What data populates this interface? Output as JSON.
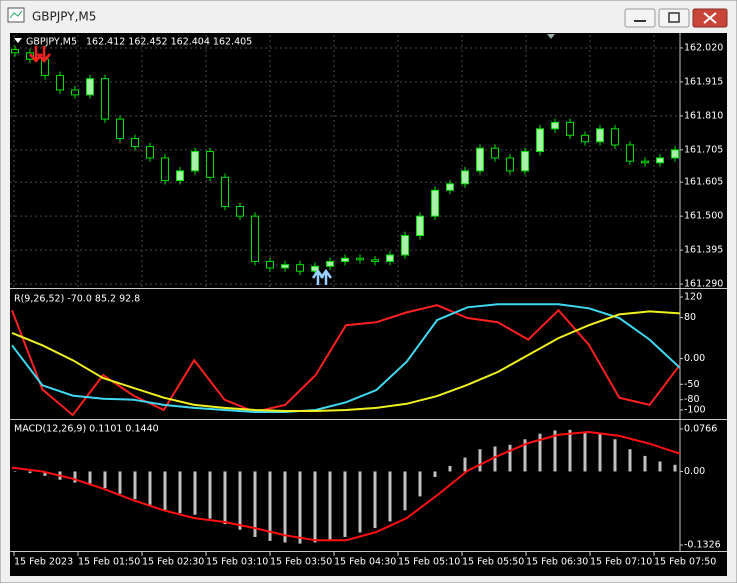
{
  "window": {
    "title": "GBPJPY,M5"
  },
  "chart_data": [
    {
      "type": "candlestick",
      "title": "GBPJPY,M5",
      "ohlc_header": "162.412 162.452 162.404 162.405",
      "up_color": "#a8f0a8",
      "down_color": "#000000",
      "wick_color": "#00e000",
      "grid": true,
      "ylim": [
        161.281,
        162.06
      ],
      "yticks": [
        {
          "value": 162.02,
          "label": "162.020"
        },
        {
          "value": 161.915,
          "label": "161.915"
        },
        {
          "value": 161.81,
          "label": "161.810"
        },
        {
          "value": 161.705,
          "label": "161.705"
        },
        {
          "value": 161.605,
          "label": "161.605"
        },
        {
          "value": 161.5,
          "label": "161.500"
        },
        {
          "value": 161.395,
          "label": "161.395"
        },
        {
          "value": 161.29,
          "label": "161.290"
        }
      ],
      "open": [
        162.015,
        162.005,
        161.985,
        161.935,
        161.89,
        161.875,
        161.925,
        161.8,
        161.74,
        161.715,
        161.68,
        161.61,
        161.64,
        161.7,
        161.62,
        161.53,
        161.5,
        161.36,
        161.34,
        161.35,
        161.33,
        161.345,
        161.36,
        161.37,
        161.365,
        161.36,
        161.38,
        161.44,
        161.5,
        161.58,
        161.6,
        161.64,
        161.71,
        161.68,
        161.64,
        161.7,
        161.77,
        161.79,
        161.75,
        161.73,
        161.77,
        161.72,
        161.67,
        161.665,
        161.68
      ],
      "high": [
        162.027,
        162.017,
        161.997,
        161.947,
        161.902,
        161.937,
        161.937,
        161.812,
        161.752,
        161.727,
        161.692,
        161.652,
        161.712,
        161.712,
        161.632,
        161.542,
        161.512,
        161.372,
        161.362,
        161.362,
        161.357,
        161.372,
        161.382,
        161.382,
        161.377,
        161.392,
        161.452,
        161.512,
        161.592,
        161.612,
        161.652,
        161.722,
        161.722,
        161.692,
        161.712,
        161.782,
        161.802,
        161.802,
        161.762,
        161.782,
        161.782,
        161.732,
        161.682,
        161.692,
        161.717
      ],
      "low": [
        161.993,
        161.973,
        161.923,
        161.878,
        161.863,
        161.863,
        161.788,
        161.728,
        161.703,
        161.668,
        161.598,
        161.598,
        161.628,
        161.608,
        161.518,
        161.488,
        161.348,
        161.328,
        161.328,
        161.318,
        161.318,
        161.333,
        161.348,
        161.353,
        161.348,
        161.348,
        161.368,
        161.428,
        161.488,
        161.568,
        161.588,
        161.628,
        161.668,
        161.628,
        161.628,
        161.688,
        161.758,
        161.738,
        161.718,
        161.718,
        161.708,
        161.658,
        161.653,
        161.653,
        161.668
      ],
      "close": [
        162.005,
        161.985,
        161.935,
        161.89,
        161.875,
        161.925,
        161.8,
        161.74,
        161.715,
        161.68,
        161.61,
        161.64,
        161.7,
        161.62,
        161.53,
        161.5,
        161.36,
        161.34,
        161.35,
        161.33,
        161.345,
        161.36,
        161.37,
        161.365,
        161.36,
        161.38,
        161.44,
        161.5,
        161.58,
        161.6,
        161.64,
        161.71,
        161.68,
        161.64,
        161.7,
        161.77,
        161.79,
        161.75,
        161.73,
        161.77,
        161.72,
        161.67,
        161.665,
        161.68,
        161.705
      ]
    },
    {
      "type": "line",
      "title": "R(9,26,52) -70.0 85.2 92.8",
      "grid": false,
      "ylim": [
        -115.6,
        133.6
      ],
      "yticks": [
        120,
        80,
        {
          "value": 0,
          "label": "0.00"
        },
        -50,
        -80,
        -100
      ],
      "series": [
        {
          "color": "#ff2020",
          "values": [
            94,
            -60,
            -110,
            -32,
            -72,
            -100,
            -3,
            -80,
            -104,
            -90,
            -32,
            65,
            71,
            90,
            104,
            79,
            71,
            37,
            94,
            27,
            -76,
            -90,
            -12
          ]
        },
        {
          "color": "#40d8f0",
          "values": [
            26,
            -52,
            -72,
            -78,
            -80,
            -90,
            -96,
            -100,
            -104,
            -104,
            -100,
            -85,
            -61,
            -6,
            75,
            100,
            106,
            106,
            106,
            98,
            79,
            37,
            -18
          ]
        },
        {
          "color": "#f0f020",
          "values": [
            50,
            26,
            -3,
            -38,
            -57,
            -76,
            -90,
            -96,
            -100,
            -102,
            -102,
            -100,
            -96,
            -88,
            -73,
            -51,
            -26,
            7,
            40,
            65,
            86,
            92,
            88
          ]
        }
      ]
    },
    {
      "type": "macd",
      "title": "MACD(12,26,9) 0.1101 0.1440",
      "grid": false,
      "ylim": [
        -0.1415,
        0.0909
      ],
      "yticks": [
        0.0766,
        {
          "value": 0,
          "label": "0.00"
        },
        -0.1326
      ],
      "histogram": {
        "color": "#c0c0c0",
        "values": [
          0.0,
          -0.003,
          -0.008,
          -0.015,
          -0.02,
          -0.022,
          -0.03,
          -0.04,
          -0.05,
          -0.06,
          -0.07,
          -0.075,
          -0.078,
          -0.085,
          -0.095,
          -0.105,
          -0.118,
          -0.125,
          -0.128,
          -0.13,
          -0.128,
          -0.124,
          -0.118,
          -0.11,
          -0.102,
          -0.09,
          -0.07,
          -0.045,
          -0.01,
          0.01,
          0.025,
          0.04,
          0.045,
          0.048,
          0.058,
          0.068,
          0.074,
          0.075,
          0.072,
          0.068,
          0.058,
          0.04,
          0.028,
          0.018,
          0.012
        ]
      },
      "signal": {
        "color": "#ff1010",
        "values": [
          0.007,
          0.0,
          -0.013,
          -0.031,
          -0.052,
          -0.07,
          -0.084,
          -0.091,
          -0.102,
          -0.115,
          -0.124,
          -0.124,
          -0.109,
          -0.084,
          -0.043,
          0.001,
          0.028,
          0.051,
          0.066,
          0.071,
          0.064,
          0.05,
          0.032
        ]
      }
    }
  ],
  "time_labels": [
    "15 Feb 2023",
    "15 Feb 01:50",
    "15 Feb 02:30",
    "15 Feb 03:10",
    "15 Feb 03:50",
    "15 Feb 04:30",
    "15 Feb 05:10",
    "15 Feb 05:50",
    "15 Feb 06:30",
    "15 Feb 07:10",
    "15 Feb 07:50"
  ]
}
